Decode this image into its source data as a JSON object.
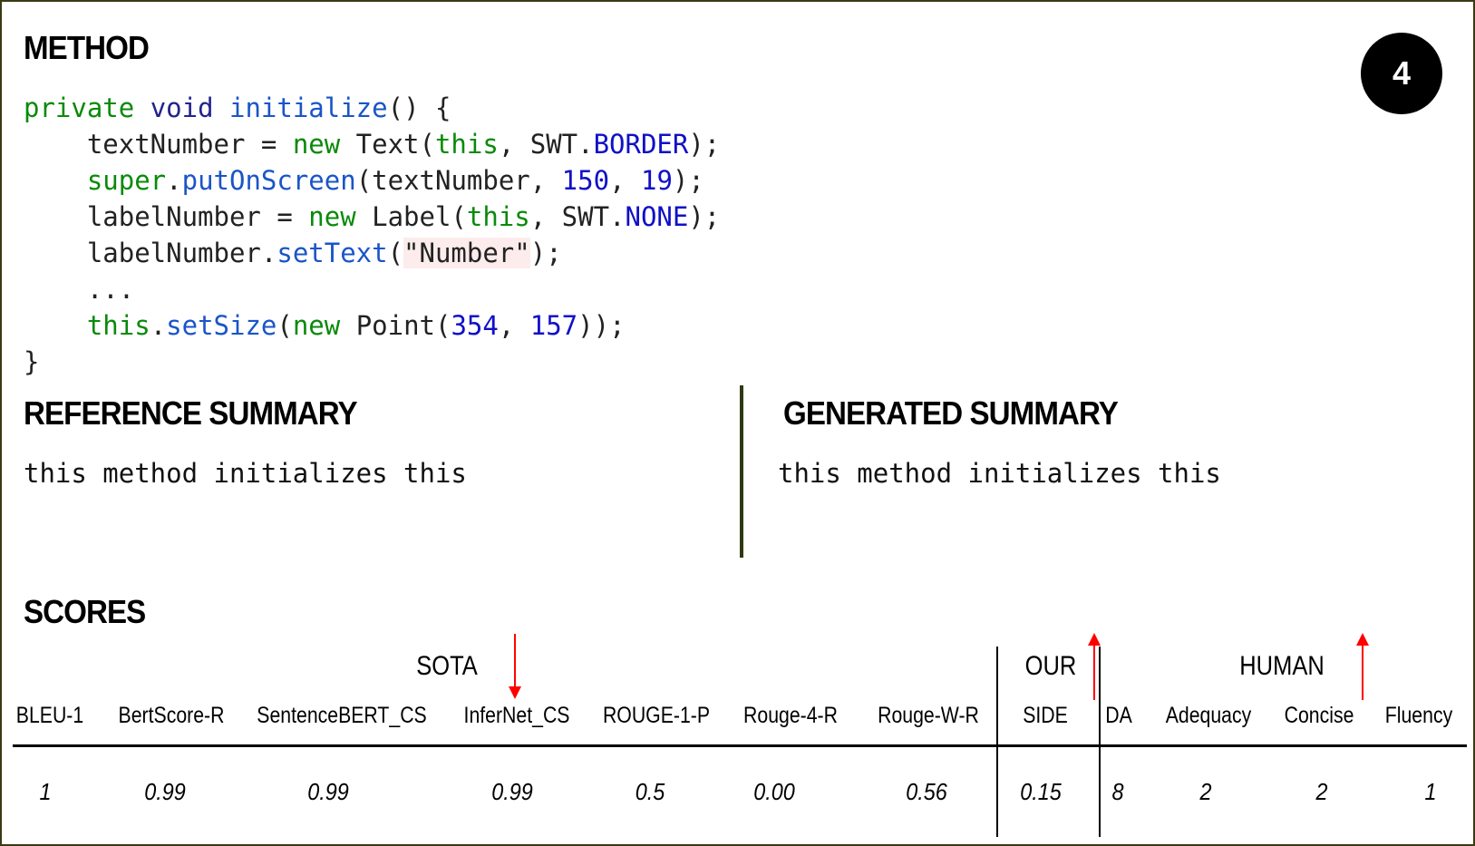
{
  "method": {
    "title": "METHOD",
    "badge": "4",
    "code": {
      "l1": [
        "private",
        " ",
        "void",
        " ",
        "initialize",
        "() {"
      ],
      "l2": [
        "    textNumber = ",
        "new",
        " Text(",
        "this",
        ", SWT.",
        "BORDER",
        ");"
      ],
      "l3": [
        "    ",
        "super",
        ".",
        "putOnScreen",
        "(textNumber, ",
        "150",
        ", ",
        "19",
        ");"
      ],
      "l4": [
        "    labelNumber = ",
        "new",
        " Label(",
        "this",
        ", SWT.",
        "NONE",
        ");"
      ],
      "l5": [
        "    labelNumber.",
        "setText",
        "(",
        "\"Number\"",
        ");"
      ],
      "l6": [
        "    ..."
      ],
      "l7": [
        "    ",
        "this",
        ".",
        "setSize",
        "(",
        "new",
        " Point(",
        "354",
        ", ",
        "157",
        "));"
      ],
      "l8": [
        "}"
      ]
    }
  },
  "reference": {
    "title": "REFERENCE SUMMARY",
    "text": "this method initializes this"
  },
  "generated": {
    "title": "GENERATED SUMMARY",
    "text": "this method initializes this"
  },
  "scores": {
    "title": "SCORES",
    "groups": [
      "SOTA",
      "OUR",
      "HUMAN"
    ],
    "columns": [
      "BLEU-1",
      "BertScore-R",
      "SentenceBERT_CS",
      "InferNet_CS",
      "ROUGE-1-P",
      "Rouge-4-R",
      "Rouge-W-R",
      "SIDE",
      "DA",
      "Adequacy",
      "Concise",
      "Fluency"
    ],
    "values": [
      "1",
      "0.99",
      "0.99",
      "0.99",
      "0.5",
      "0.00",
      "0.56",
      "0.15",
      "8",
      "2",
      "2",
      "1"
    ],
    "arrows": {
      "InferNet_CS": "down",
      "SIDE": "up",
      "Concise": "up"
    },
    "arrow_color": "#ff0000"
  }
}
